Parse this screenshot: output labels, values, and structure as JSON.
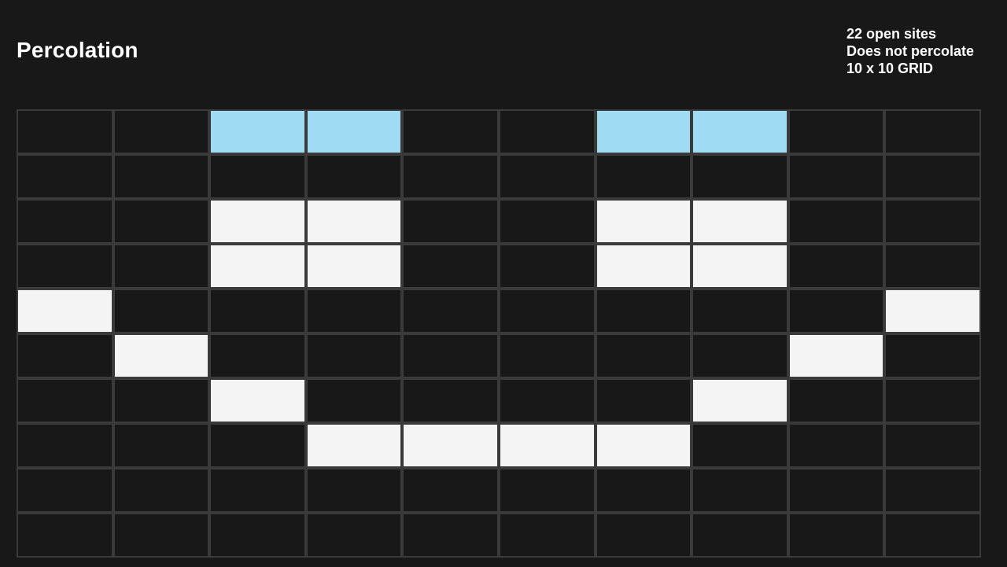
{
  "header": {
    "title": "Percolation",
    "open_sites": "22 open sites",
    "status": "Does not percolate",
    "grid_size": "10 x 10 GRID"
  },
  "colors": {
    "background": "#181818",
    "grid_line": "#3a3a3a",
    "blocked": "#181818",
    "open": "#f4f4f4",
    "full": "#9fdcf3"
  },
  "grid": {
    "rows": 10,
    "cols": 10,
    "legend": {
      "0": "blocked",
      "1": "open",
      "2": "full"
    },
    "cells": [
      [
        0,
        0,
        2,
        2,
        0,
        0,
        2,
        2,
        0,
        0
      ],
      [
        0,
        0,
        0,
        0,
        0,
        0,
        0,
        0,
        0,
        0
      ],
      [
        0,
        0,
        1,
        1,
        0,
        0,
        1,
        1,
        0,
        0
      ],
      [
        0,
        0,
        1,
        1,
        0,
        0,
        1,
        1,
        0,
        0
      ],
      [
        1,
        0,
        0,
        0,
        0,
        0,
        0,
        0,
        0,
        1
      ],
      [
        0,
        1,
        0,
        0,
        0,
        0,
        0,
        0,
        1,
        0
      ],
      [
        0,
        0,
        1,
        0,
        0,
        0,
        0,
        1,
        0,
        0
      ],
      [
        0,
        0,
        0,
        1,
        1,
        1,
        1,
        0,
        0,
        0
      ],
      [
        0,
        0,
        0,
        0,
        0,
        0,
        0,
        0,
        0,
        0
      ],
      [
        0,
        0,
        0,
        0,
        0,
        0,
        0,
        0,
        0,
        0
      ]
    ]
  }
}
